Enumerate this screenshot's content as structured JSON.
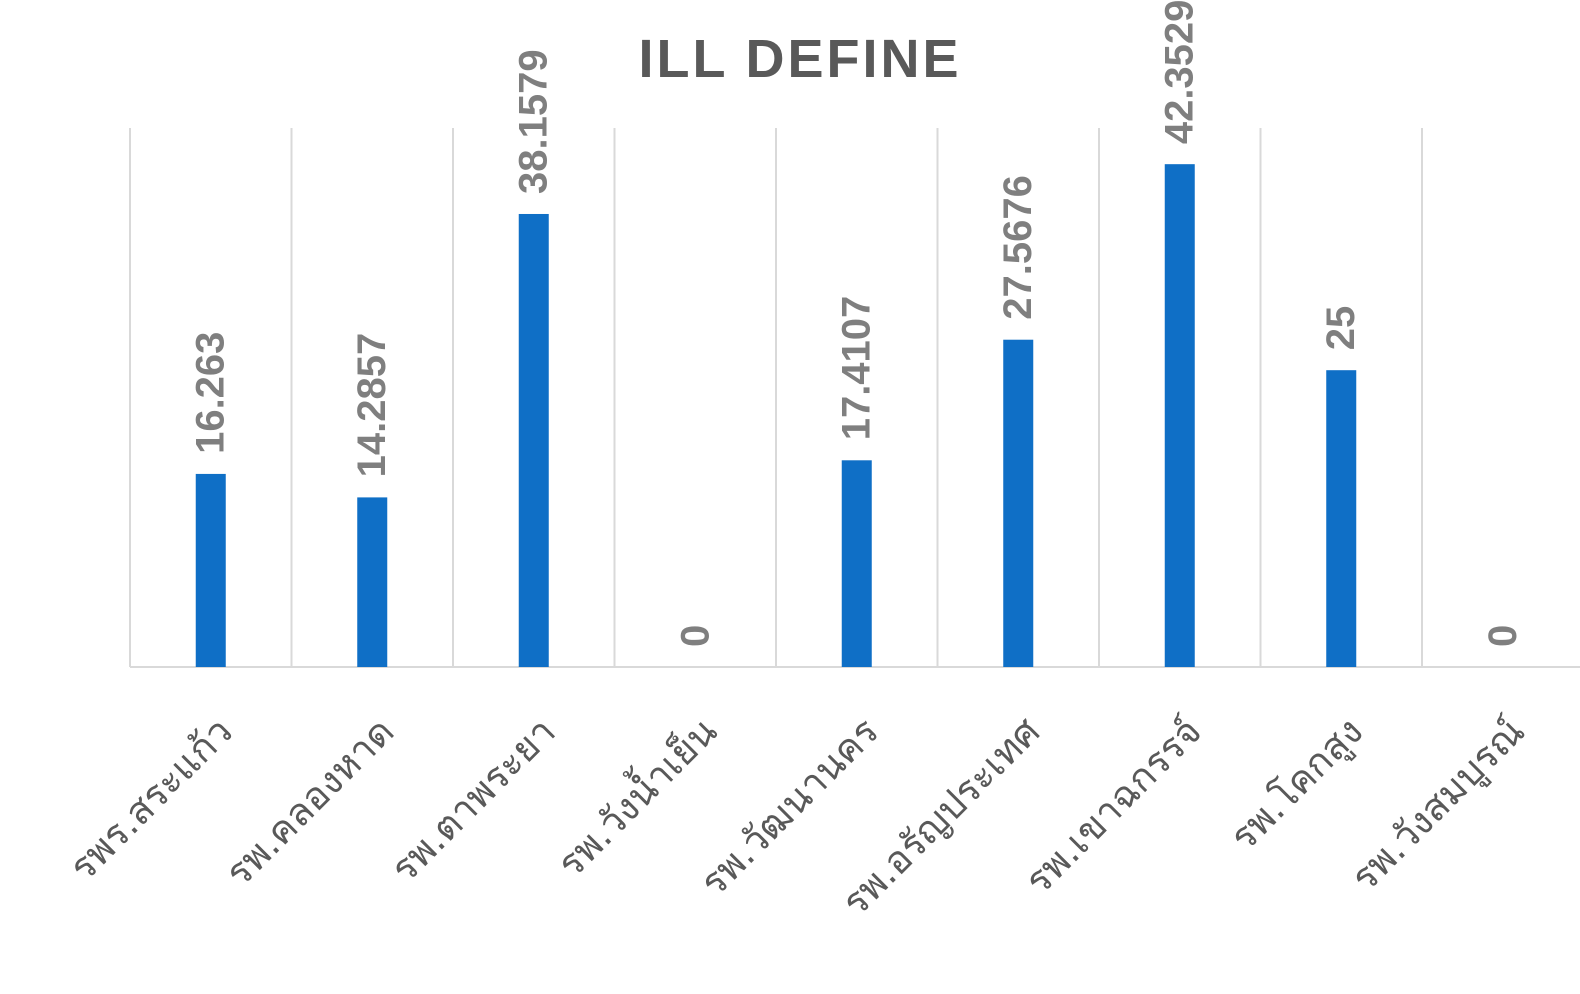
{
  "chart_data": {
    "type": "bar",
    "title": "ILL DEFINE",
    "xlabel": "",
    "ylabel": "",
    "categories": [
      "รพร.สระแก้ว",
      "รพ.คลองหาด",
      "รพ.ตาพระยา",
      "รพ.วังน้ำเย็น",
      "รพ.วัฒนานคร",
      "รพ.อรัญประเทศ",
      "รพ.เขาฉกรรจ์",
      "รพ.โคกสูง",
      "รพ.วังสมบูรณ์"
    ],
    "values": [
      16.263,
      14.2857,
      38.1579,
      0,
      17.4107,
      27.5676,
      42.3529,
      25,
      0
    ],
    "data_labels": [
      "16.263",
      "14.2857",
      "38.1579",
      "0",
      "17.4107",
      "27.5676",
      "42.3529",
      "25",
      "0"
    ],
    "ylim": [
      0,
      45.4
    ],
    "grid": "vertical category separators",
    "legend": "none",
    "colors": {
      "bar": "#0F6FC6",
      "label": "#7F7F7F",
      "axis": "#D9D9D9",
      "title": "#595959"
    }
  }
}
